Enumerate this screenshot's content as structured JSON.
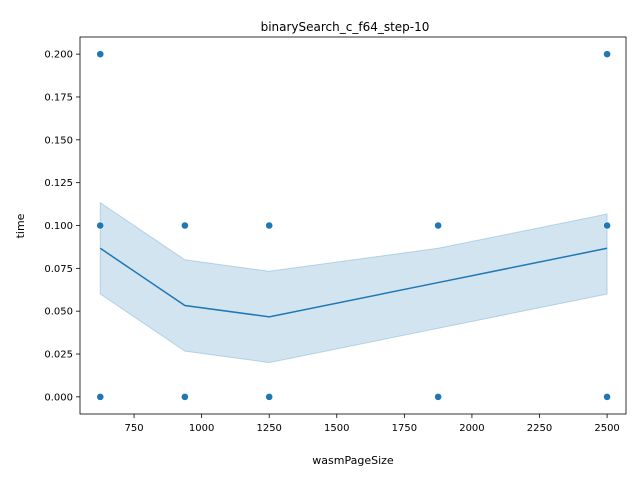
{
  "chart_data": {
    "type": "scatter",
    "title": "binarySearch_c_f64_step-10",
    "xlabel": "wasmPageSize",
    "ylabel": "time",
    "xlim": [
      550,
      2570
    ],
    "ylim": [
      -0.01,
      0.21
    ],
    "x_ticks": [
      750,
      1000,
      1250,
      1500,
      1750,
      2000,
      2250,
      2500
    ],
    "x_tick_labels": [
      "750",
      "1000",
      "1250",
      "1500",
      "1750",
      "2000",
      "2250",
      "2500"
    ],
    "y_ticks": [
      0.0,
      0.025,
      0.05,
      0.075,
      0.1,
      0.125,
      0.15,
      0.175,
      0.2
    ],
    "y_tick_labels": [
      "0.000",
      "0.025",
      "0.050",
      "0.075",
      "0.100",
      "0.125",
      "0.150",
      "0.175",
      "0.200"
    ],
    "grid": false,
    "points": [
      {
        "x": 625,
        "y": 0.2
      },
      {
        "x": 625,
        "y": 0.1
      },
      {
        "x": 625,
        "y": 0.0
      },
      {
        "x": 938,
        "y": 0.1
      },
      {
        "x": 938,
        "y": 0.0
      },
      {
        "x": 1250,
        "y": 0.1
      },
      {
        "x": 1250,
        "y": 0.0
      },
      {
        "x": 1875,
        "y": 0.1
      },
      {
        "x": 1875,
        "y": 0.0
      },
      {
        "x": 2500,
        "y": 0.2
      },
      {
        "x": 2500,
        "y": 0.1
      },
      {
        "x": 2500,
        "y": 0.0
      }
    ],
    "mean_line": {
      "x": [
        625,
        938,
        1250,
        1875,
        2500
      ],
      "y": [
        0.0867,
        0.0533,
        0.0467,
        0.0667,
        0.0867
      ]
    },
    "confidence_band": {
      "x": [
        625,
        938,
        1250,
        1875,
        2500
      ],
      "lower": [
        0.06,
        0.0267,
        0.02,
        0.04,
        0.06
      ],
      "upper": [
        0.1133,
        0.08,
        0.0733,
        0.0867,
        0.1067
      ]
    },
    "colors": {
      "points": "#1f77b4",
      "line": "#1f77b4",
      "band": "#1f77b4"
    }
  }
}
